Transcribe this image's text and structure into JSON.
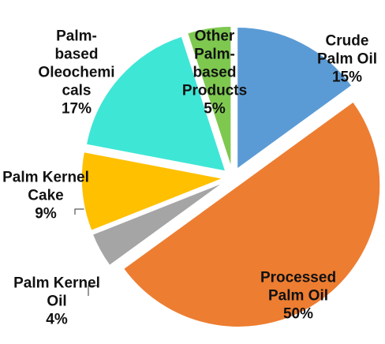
{
  "chart_data": {
    "type": "pie",
    "categories": [
      "Crude Palm Oil",
      "Processed Palm Oil",
      "Palm Kernel Oil",
      "Palm Kernel Cake",
      "Palm-based Oleochemicals",
      "Other Palm-based Products"
    ],
    "values": [
      15,
      50,
      4,
      9,
      17,
      5
    ],
    "value_labels": [
      "15%",
      "50%",
      "4%",
      "9%",
      "17%",
      "5%"
    ],
    "colors": [
      "#5b9bd5",
      "#ed7d31",
      "#a5a5a5",
      "#ffc000",
      "#3ee6d6",
      "#7ec850"
    ]
  }
}
